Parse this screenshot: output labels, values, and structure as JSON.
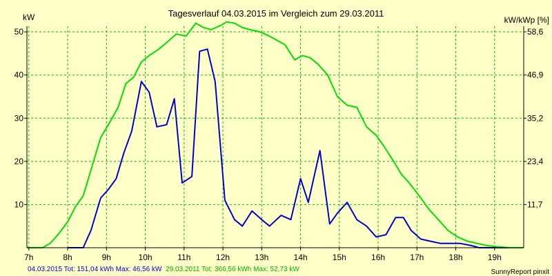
{
  "chart_data": {
    "type": "line",
    "title": "Tagesverlauf 04.03.2015 im Vergleich zum 29.03.2011",
    "ylabel_left": "kW",
    "ylabel_right": "kW/kWp [%]",
    "x_ticks": [
      "7h",
      "8h",
      "9h",
      "10h",
      "11h",
      "12h",
      "13h",
      "14h",
      "15h",
      "16h",
      "17h",
      "18h",
      "19h"
    ],
    "y_ticks_left": [
      "10",
      "20",
      "30",
      "40",
      "50"
    ],
    "y_ticks_right": [
      "11,7",
      "23,4",
      "35,2",
      "46,9",
      "58,6"
    ],
    "xlim": [
      6.95,
      19.75
    ],
    "ylim": [
      0,
      51.3
    ],
    "grid": true,
    "colors": {
      "background": "#ffffc8",
      "plot_background": "#ffffc8",
      "grid": "#00c000",
      "axis": "#000000",
      "series_2015": "#0000cc",
      "series_2011": "#00e000"
    },
    "series": [
      {
        "name": "04.03.2015",
        "color": "#0000cc",
        "x": [
          8.0,
          8.25,
          8.4,
          8.6,
          8.85,
          9.05,
          9.25,
          9.45,
          9.65,
          9.9,
          10.1,
          10.3,
          10.55,
          10.75,
          10.95,
          11.2,
          11.4,
          11.6,
          11.8,
          12.05,
          12.3,
          12.5,
          12.75,
          13.0,
          13.2,
          13.5,
          13.75,
          14.0,
          14.2,
          14.5,
          14.75,
          14.95,
          15.2,
          15.45,
          15.7,
          15.95,
          16.2,
          16.45,
          16.65,
          16.85,
          17.1,
          17.35,
          17.6,
          17.85,
          18.1,
          18.4,
          18.6,
          18.85,
          19.1,
          19.4,
          19.75
        ],
        "y": [
          0,
          0,
          0,
          4,
          11.5,
          13.5,
          16,
          22,
          27,
          38.5,
          36,
          28,
          28.5,
          34.5,
          15,
          16.5,
          45.5,
          46,
          38.5,
          11,
          6.5,
          5,
          8.5,
          6.5,
          5,
          7.5,
          6.5,
          16,
          10.5,
          22.5,
          5.5,
          8,
          10.5,
          6.5,
          5,
          2.5,
          3,
          7,
          7,
          4,
          2,
          1.5,
          1,
          1,
          1,
          0.5,
          0,
          0,
          0,
          0,
          0
        ]
      },
      {
        "name": "29.03.2011",
        "color": "#00e000",
        "x": [
          6.95,
          7.35,
          7.55,
          7.75,
          8.0,
          8.2,
          8.4,
          8.6,
          8.85,
          9.05,
          9.3,
          9.5,
          9.7,
          9.9,
          10.1,
          10.35,
          10.55,
          10.8,
          11.05,
          11.3,
          11.5,
          11.7,
          11.95,
          12.1,
          12.3,
          12.5,
          12.7,
          12.95,
          13.2,
          13.4,
          13.6,
          13.85,
          14.05,
          14.25,
          14.45,
          14.7,
          14.95,
          15.2,
          15.45,
          15.7,
          15.95,
          16.15,
          16.4,
          16.6,
          16.8,
          17.1,
          17.3,
          17.55,
          17.8,
          18.05,
          18.3,
          18.55,
          18.8,
          19.1,
          19.4,
          19.75
        ],
        "y": [
          0,
          0,
          1,
          3,
          6,
          9.5,
          12,
          18,
          25.5,
          28.5,
          32.5,
          38,
          39.5,
          43,
          44.5,
          46,
          47.5,
          49.5,
          49,
          52,
          51,
          50.5,
          51.5,
          52.3,
          52,
          51,
          50.5,
          50,
          49,
          48,
          47,
          43.5,
          44.5,
          44,
          42.5,
          40,
          35,
          33,
          32.5,
          28,
          26,
          23.5,
          20,
          17,
          15,
          11.5,
          9,
          6.5,
          4,
          2.5,
          1.5,
          1,
          0.5,
          0.2,
          0,
          0
        ]
      }
    ],
    "footer": {
      "legend_2015": "04.03.2015 Tot: 151,04 kWh Max: 46,56 kW",
      "legend_2011": "29.03.2011 Tot: 366,56 kWh Max: 52,73 kW",
      "credit": "SunnyReport pinxit"
    }
  }
}
